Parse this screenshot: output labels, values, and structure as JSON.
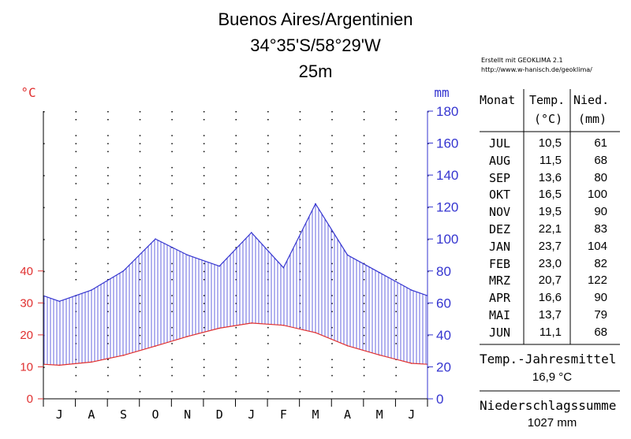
{
  "header": {
    "station": "Buenos Aires/Argentinien",
    "coords": "34°35'S/58°29'W",
    "elevation": "25m"
  },
  "credit": {
    "line1": "Erstellt mit GEOKLIMA 2.1",
    "line2": "http://www.w-hanisch.de/geoklima/"
  },
  "colors": {
    "temperature": "#e03030",
    "precipitation": "#3535d0",
    "hatch": "#4040d8",
    "axis": "#000000"
  },
  "chart_data": {
    "type": "line",
    "months": [
      "J",
      "A",
      "S",
      "O",
      "N",
      "D",
      "J",
      "F",
      "M",
      "A",
      "M",
      "J"
    ],
    "temp_axis": {
      "label": "°C",
      "ticks": [
        0,
        10,
        20,
        30,
        40
      ],
      "range": [
        0,
        90
      ]
    },
    "precip_axis": {
      "label": "mm",
      "ticks": [
        0,
        20,
        40,
        60,
        80,
        100,
        120,
        140,
        160,
        180
      ],
      "range": [
        0,
        180
      ]
    },
    "series": [
      {
        "name": "Temp.",
        "values": [
          10.5,
          11.5,
          13.6,
          16.5,
          19.5,
          22.1,
          23.7,
          23.0,
          20.7,
          16.6,
          13.7,
          11.1
        ]
      },
      {
        "name": "Nied.",
        "values": [
          61,
          68,
          80,
          100,
          90,
          83,
          104,
          82,
          122,
          90,
          79,
          68
        ]
      }
    ],
    "grid": true
  },
  "table": {
    "headers": {
      "month": "Monat",
      "temp": "Temp.",
      "temp_unit": "(°C)",
      "precip": "Nied.",
      "precip_unit": "(mm)"
    },
    "rows": [
      {
        "month": "JUL",
        "temp": "10,5",
        "precip": "61"
      },
      {
        "month": "AUG",
        "temp": "11,5",
        "precip": "68"
      },
      {
        "month": "SEP",
        "temp": "13,6",
        "precip": "80"
      },
      {
        "month": "OKT",
        "temp": "16,5",
        "precip": "100"
      },
      {
        "month": "NOV",
        "temp": "19,5",
        "precip": "90"
      },
      {
        "month": "DEZ",
        "temp": "22,1",
        "precip": "83"
      },
      {
        "month": "JAN",
        "temp": "23,7",
        "precip": "104"
      },
      {
        "month": "FEB",
        "temp": "23,0",
        "precip": "82"
      },
      {
        "month": "MRZ",
        "temp": "20,7",
        "precip": "122"
      },
      {
        "month": "APR",
        "temp": "16,6",
        "precip": "90"
      },
      {
        "month": "MAI",
        "temp": "13,7",
        "precip": "79"
      },
      {
        "month": "JUN",
        "temp": "11,1",
        "precip": "68"
      }
    ]
  },
  "summary": {
    "temp_label": "Temp.-Jahresmittel",
    "temp_value": "16,9 °C",
    "precip_label": "Niederschlagssumme",
    "precip_value": "1027 mm"
  }
}
